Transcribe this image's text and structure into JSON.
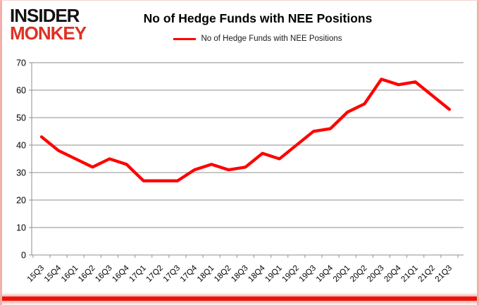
{
  "logo": {
    "line1": "INSIDER",
    "line2": "MONKEY"
  },
  "header": {
    "title": "No of Hedge Funds with NEE Positions"
  },
  "legend": {
    "label": "No of Hedge Funds with NEE Positions"
  },
  "colors": {
    "line": "#ff0000",
    "logo_black": "#121212",
    "logo_red": "#e03123",
    "grid": "#8f8f8f",
    "axis_text": "#000000",
    "frame_red": "#e8150b"
  },
  "chart_data": {
    "type": "line",
    "title": "No of Hedge Funds with NEE Positions",
    "categories": [
      "15Q3",
      "15Q4",
      "16Q1",
      "16Q2",
      "16Q3",
      "16Q4",
      "17Q1",
      "17Q2",
      "17Q3",
      "17Q4",
      "18Q1",
      "18Q2",
      "18Q3",
      "18Q4",
      "19Q1",
      "19Q2",
      "19Q3",
      "19Q4",
      "20Q1",
      "20Q2",
      "20Q3",
      "20Q4",
      "21Q1",
      "21Q2",
      "21Q3"
    ],
    "series": [
      {
        "name": "No of Hedge Funds with NEE Positions",
        "values": [
          43,
          38,
          35,
          32,
          35,
          33,
          27,
          27,
          27,
          31,
          33,
          31,
          32,
          37,
          35,
          40,
          45,
          46,
          52,
          55,
          64,
          62,
          63,
          58,
          53
        ]
      }
    ],
    "xlabel": "",
    "ylabel": "",
    "ylim": [
      0,
      70
    ],
    "ytick_step": 10,
    "grid": true,
    "legend_position": "top",
    "line_color": "#ff0000"
  }
}
